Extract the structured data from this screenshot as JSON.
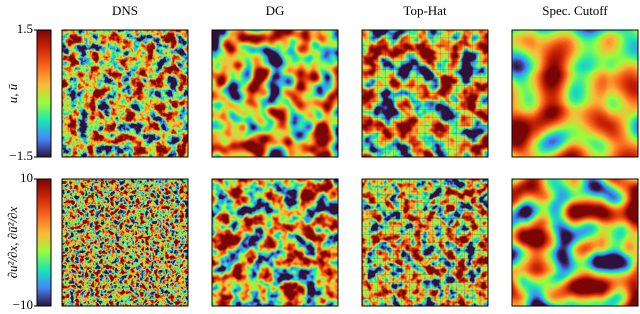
{
  "columns": [
    "DNS",
    "DG",
    "Top-Hat",
    "Spec. Cutoff"
  ],
  "rows": [
    {
      "label": "u, ū",
      "colorbar": {
        "lim": [
          -1.5,
          1.5
        ],
        "ticks": [
          {
            "value": -1.5,
            "label": "−1.5"
          },
          1.5
        ]
      }
    },
    {
      "label": "∂u²/∂x, ∂ū²/∂x",
      "colorbar": {
        "lim": [
          -10,
          10
        ],
        "ticks": [
          {
            "value": -10,
            "label": "−10"
          },
          10
        ]
      }
    }
  ]
}
